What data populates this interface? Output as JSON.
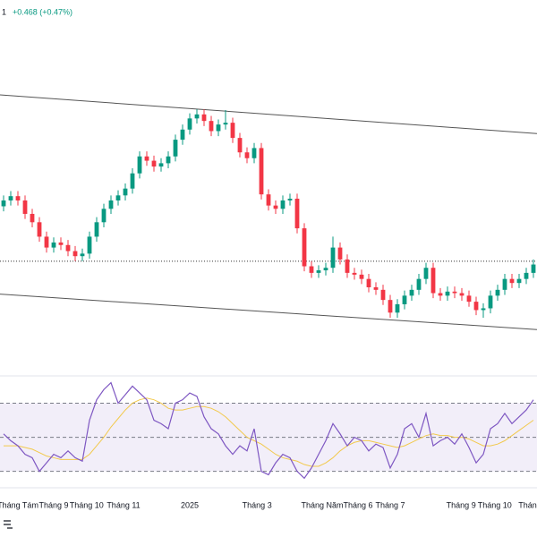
{
  "chart_data": [
    {
      "type": "candlestick",
      "annotations": [
        "1",
        "+0.468 (+0.47%)"
      ],
      "up_color": "#089981",
      "down_color": "#f23645",
      "xlim": [
        -0.5,
        74.5
      ],
      "ylim": [
        95.1,
        109.1
      ],
      "xticks": [
        {
          "value": 2,
          "label": "Tháng Tám"
        },
        {
          "value": 7,
          "label": "Tháng 9"
        },
        {
          "value": 11.6,
          "label": "Tháng 10"
        },
        {
          "value": 16.75,
          "label": "Tháng 11"
        },
        {
          "value": 26,
          "label": "2025"
        },
        {
          "value": 35.4,
          "label": "Tháng 3"
        },
        {
          "value": 44.5,
          "label": "Tháng Năm"
        },
        {
          "value": 49.5,
          "label": "Tháng 6"
        },
        {
          "value": 54,
          "label": "Tháng 7"
        },
        {
          "value": 63.9,
          "label": "Tháng 9"
        },
        {
          "value": 68.6,
          "label": "Tháng 10"
        },
        {
          "value": 73.5,
          "label": "Tháng"
        }
      ],
      "lines": [
        {
          "style": "solid",
          "color": "#555555",
          "points": [
            [
              -0.5,
              106.2
            ],
            [
              74.5,
              104.67
            ]
          ]
        },
        {
          "style": "solid",
          "color": "#555555",
          "points": [
            [
              -0.5,
              98.33
            ],
            [
              74.5,
              96.93
            ]
          ]
        },
        {
          "style": "dotted",
          "color": "#333333",
          "points": [
            [
              -0.5,
              99.63
            ],
            [
              74.5,
              99.63
            ]
          ]
        }
      ],
      "open": [
        101.8,
        102.03,
        102.2,
        102.03,
        101.5,
        101.17,
        100.6,
        100.17,
        100.37,
        100.27,
        100.03,
        99.83,
        99.93,
        100.6,
        101.17,
        101.7,
        102.03,
        102.23,
        102.5,
        103.1,
        103.77,
        103.6,
        103.37,
        103.5,
        103.77,
        104.43,
        104.83,
        105.27,
        105.43,
        105.17,
        104.77,
        105.03,
        105.1,
        104.5,
        103.93,
        103.7,
        104.1,
        102.27,
        101.83,
        101.7,
        102.03,
        102.1,
        100.93,
        99.43,
        99.17,
        99.27,
        99.37,
        100.17,
        99.7,
        99.17,
        99.1,
        98.93,
        98.6,
        98.5,
        98.1,
        97.6,
        97.93,
        98.27,
        98.5,
        98.93,
        99.37,
        98.37,
        98.27,
        98.43,
        98.37,
        98.27,
        98.03,
        97.7,
        97.77,
        98.27,
        98.5,
        98.93,
        98.77,
        98.93,
        99.17
      ],
      "high": [
        102.23,
        102.4,
        102.4,
        102.23,
        101.7,
        101.37,
        100.8,
        100.57,
        100.57,
        100.47,
        100.23,
        100.13,
        100.8,
        101.37,
        101.9,
        102.23,
        102.43,
        102.7,
        103.3,
        103.97,
        103.97,
        103.8,
        103.7,
        103.97,
        104.63,
        105.03,
        105.47,
        105.63,
        105.63,
        105.37,
        105.23,
        105.6,
        105.3,
        104.7,
        104.13,
        104.3,
        104.3,
        102.47,
        102.03,
        102.23,
        102.3,
        102.3,
        101.13,
        99.63,
        99.47,
        99.57,
        100.6,
        100.37,
        99.9,
        99.37,
        99.3,
        99.13,
        98.8,
        98.7,
        98.3,
        98.13,
        98.47,
        98.7,
        99.13,
        99.57,
        99.57,
        98.57,
        98.63,
        98.63,
        98.57,
        98.47,
        98.23,
        97.97,
        98.47,
        98.7,
        99.13,
        99.13,
        99.13,
        99.37,
        99.7
      ],
      "low": [
        101.6,
        101.83,
        101.83,
        101.3,
        100.97,
        100.4,
        99.97,
        99.97,
        100.07,
        99.83,
        99.63,
        99.63,
        99.73,
        100.4,
        100.97,
        101.5,
        101.83,
        102.03,
        102.3,
        102.9,
        103.4,
        103.17,
        103.17,
        103.3,
        103.57,
        104.23,
        104.63,
        105.07,
        104.97,
        104.57,
        104.57,
        104.83,
        104.3,
        103.73,
        103.5,
        103.5,
        102.07,
        101.63,
        101.5,
        101.5,
        101.83,
        100.73,
        99.23,
        98.97,
        98.97,
        99.07,
        99.17,
        99.5,
        98.97,
        98.9,
        98.73,
        98.4,
        98.3,
        97.9,
        97.4,
        97.4,
        97.73,
        98.07,
        98.3,
        98.73,
        98.17,
        98.07,
        98.07,
        98.17,
        98.07,
        97.83,
        97.5,
        97.4,
        97.57,
        98.07,
        98.3,
        98.57,
        98.57,
        98.73,
        98.97
      ],
      "close": [
        102.03,
        102.2,
        102.03,
        101.5,
        101.17,
        100.6,
        100.17,
        100.37,
        100.27,
        100.03,
        99.83,
        99.93,
        100.6,
        101.17,
        101.7,
        102.03,
        102.23,
        102.5,
        103.1,
        103.77,
        103.6,
        103.37,
        103.5,
        103.77,
        104.43,
        104.83,
        105.27,
        105.43,
        105.17,
        104.77,
        105.03,
        105.1,
        104.5,
        103.93,
        103.7,
        104.1,
        102.27,
        101.83,
        101.7,
        102.03,
        102.1,
        100.93,
        99.43,
        99.17,
        99.27,
        99.37,
        100.17,
        99.7,
        99.17,
        99.1,
        98.93,
        98.6,
        98.5,
        98.1,
        97.6,
        97.93,
        98.27,
        98.5,
        98.93,
        99.37,
        98.37,
        98.27,
        98.43,
        98.37,
        98.27,
        98.03,
        97.7,
        97.77,
        98.27,
        98.5,
        98.93,
        98.77,
        98.93,
        99.17,
        99.5
      ]
    },
    {
      "type": "line",
      "xlim": [
        -0.5,
        74.5
      ],
      "ylim": [
        23,
        86
      ],
      "levels": [
        70,
        50,
        30
      ],
      "band_color": "#7e57c2",
      "series": [
        {
          "color": "#7e57c2",
          "values": [
            52,
            48,
            45,
            40,
            38,
            30,
            35,
            40,
            38,
            42,
            38,
            36,
            60,
            72,
            78,
            82,
            70,
            75,
            80,
            76,
            72,
            60,
            58,
            55,
            70,
            72,
            76,
            74,
            62,
            55,
            52,
            45,
            40,
            45,
            42,
            55,
            30,
            28,
            35,
            40,
            38,
            30,
            26,
            32,
            40,
            48,
            58,
            52,
            45,
            50,
            48,
            42,
            46,
            44,
            32,
            40,
            55,
            58,
            50,
            64,
            45,
            48,
            50,
            46,
            52,
            44,
            35,
            40,
            55,
            58,
            64,
            58,
            62,
            66,
            72
          ]
        },
        {
          "color": "#f2c94c",
          "values": [
            45,
            45,
            45,
            44,
            43,
            41,
            39,
            38,
            37,
            37,
            37,
            37,
            40,
            45,
            50,
            56,
            61,
            66,
            70,
            72,
            73,
            72,
            70,
            67,
            66,
            66,
            67,
            68,
            68,
            67,
            65,
            62,
            58,
            54,
            50,
            48,
            46,
            43,
            40,
            38,
            37,
            36,
            34,
            33,
            33,
            35,
            38,
            42,
            45,
            47,
            48,
            48,
            47,
            46,
            45,
            44,
            45,
            47,
            49,
            51,
            52,
            51,
            51,
            50,
            50,
            49,
            47,
            45,
            45,
            46,
            48,
            51,
            54,
            57,
            60
          ]
        }
      ]
    }
  ]
}
